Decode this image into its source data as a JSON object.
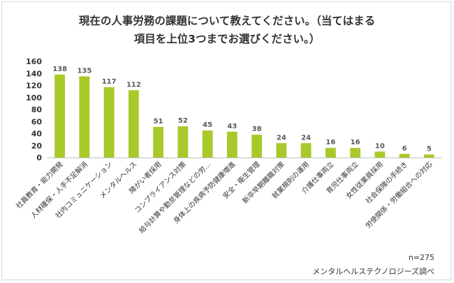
{
  "title_line1": "現在の人事労務の課題について教えてください。（当てはまる",
  "title_line2": "項目を上位3つまでお選びください。）",
  "sample_size": "n=275",
  "source": "メンタルヘルステクノロジーズ調べ",
  "bar_color": "#a8c92a",
  "chart_data": {
    "type": "bar",
    "categories": [
      "社員教育・能力開発",
      "人材確保・人手不足解消",
      "社内コミュニケーション",
      "メンタルヘルス",
      "障がい者採用",
      "コンプライアンス対策",
      "給与計算や勤怠管理などの労…",
      "身体上の疾病予防健康増進",
      "安全・衛生管理",
      "新卒早期離職対策",
      "就業規則の運用",
      "介護仕事両立",
      "育児仕事両立",
      "女性従業員採用",
      "社会保険の手続き",
      "労使関係・労働組合への対応"
    ],
    "values": [
      138,
      135,
      117,
      112,
      51,
      52,
      45,
      43,
      38,
      24,
      24,
      16,
      16,
      10,
      6,
      5
    ],
    "yticks": [
      0,
      20,
      40,
      60,
      80,
      100,
      120,
      140,
      160
    ],
    "ylim": [
      0,
      160
    ],
    "grid": false,
    "legend": "none"
  }
}
